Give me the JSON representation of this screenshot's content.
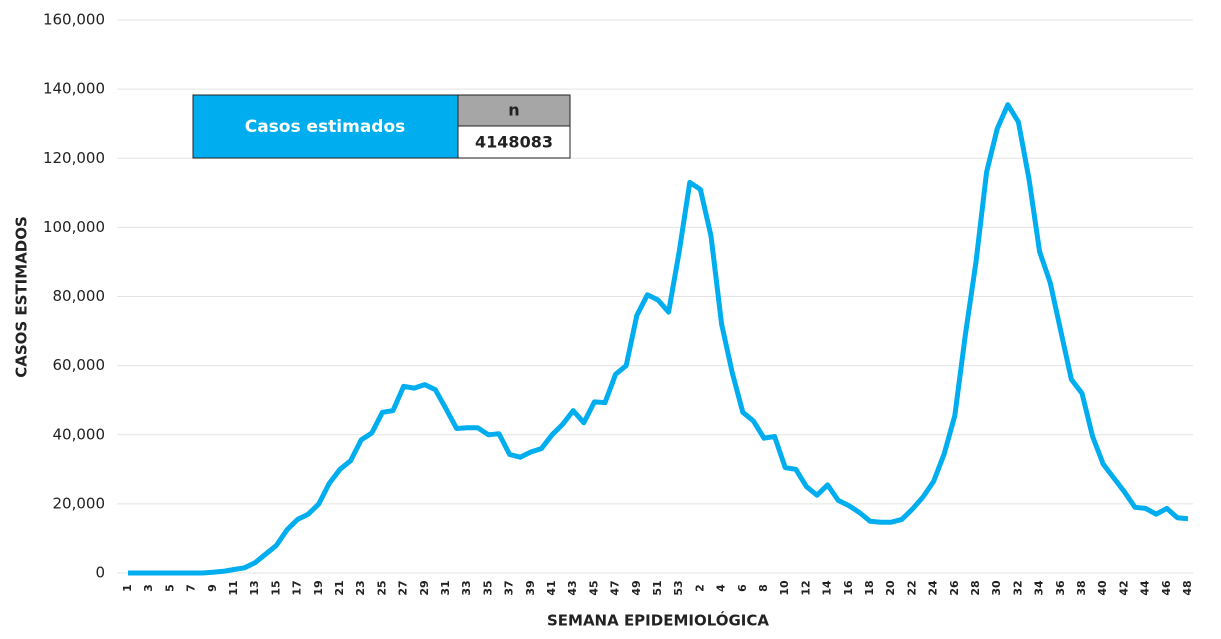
{
  "chart_data": {
    "type": "line",
    "y_label": "CASOS ESTIMADOS",
    "x_label": "SEMANA EPIDEMIOLÓGICA",
    "table": {
      "header": "Casos estimados",
      "column": "n",
      "value": "4148083"
    },
    "categories": [
      "1",
      null,
      "3",
      null,
      "5",
      null,
      "7",
      null,
      "9",
      null,
      "11",
      null,
      "13",
      null,
      "15",
      null,
      "17",
      null,
      "19",
      null,
      "21",
      null,
      "23",
      null,
      "25",
      null,
      "27",
      null,
      "29",
      null,
      "31",
      null,
      "33",
      null,
      "35",
      null,
      "37",
      null,
      "39",
      null,
      "41",
      null,
      "43",
      null,
      "45",
      null,
      "47",
      null,
      "49",
      null,
      "51",
      null,
      "53",
      null,
      "2",
      null,
      "4",
      null,
      "6",
      null,
      "8",
      null,
      "10",
      null,
      "12",
      null,
      "14",
      null,
      "16",
      null,
      "18",
      null,
      "20",
      null,
      "22",
      null,
      "24",
      null,
      "26",
      null,
      "28",
      null,
      "30",
      null,
      "32",
      null,
      "34",
      null,
      "36",
      null,
      "38",
      null,
      "40",
      null,
      "42",
      null,
      "44",
      null,
      "46",
      null,
      "48"
    ],
    "series": [
      {
        "name": "Casos estimados",
        "color": "#00aeef",
        "values": [
          0,
          0,
          0,
          0,
          0,
          0,
          0,
          0,
          200,
          500,
          1000,
          1500,
          3000,
          5500,
          8000,
          12500,
          15500,
          17000,
          20000,
          26000,
          30000,
          32500,
          38500,
          40500,
          46500,
          47000,
          54000,
          53500,
          54500,
          53000,
          47500,
          41800,
          42000,
          42000,
          40000,
          40300,
          34300,
          33500,
          35000,
          36000,
          40000,
          43000,
          47000,
          43500,
          49500,
          49300,
          57500,
          60000,
          74500,
          80500,
          79000,
          75500,
          93000,
          113000,
          111000,
          97500,
          72000,
          58000,
          46500,
          44000,
          39000,
          39500,
          30500,
          30000,
          25000,
          22500,
          25500,
          21000,
          19500,
          17500,
          15000,
          14700,
          14700,
          15500,
          18500,
          22000,
          26500,
          34500,
          45500,
          69000,
          90000,
          116000,
          128500,
          135500,
          130500,
          114000,
          93000,
          84000,
          70000,
          56000,
          52000,
          39500,
          31500,
          27500,
          23500,
          19000,
          18700,
          17000,
          18700,
          16000,
          15700
        ]
      }
    ],
    "ylim": [
      0,
      160000
    ],
    "yticks": [
      0,
      {
        "value": 20000,
        "label": "20,000"
      },
      {
        "value": 40000,
        "label": "40,000"
      },
      {
        "value": 60000,
        "label": "60,000"
      },
      {
        "value": 80000,
        "label": "80,000"
      },
      {
        "value": 100000,
        "label": "100,000"
      },
      {
        "value": 120000,
        "label": "120,000"
      },
      {
        "value": 140000,
        "label": "140,000"
      },
      {
        "value": 160000,
        "label": "160,000"
      }
    ],
    "grid": true
  }
}
